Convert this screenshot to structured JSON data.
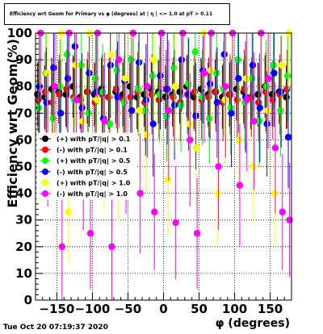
{
  "header": {
    "title": "Efficiency wrt Geom for Primary vs φ (degrees) at | η | <= 1.0 at pT > 0.11"
  },
  "footer": {
    "timestamp": "Tue Oct 20 07:19:37 2020"
  },
  "chart_data": {
    "type": "scatter",
    "xlabel": "φ (degrees)",
    "ylabel": "Efficiency wrt Geom(%)",
    "xlim": [
      -180,
      180
    ],
    "ylim": [
      0,
      100
    ],
    "xticks": [
      -150,
      -100,
      -50,
      0,
      50,
      100,
      150
    ],
    "xtick_labels": [
      "−150",
      "−100",
      "−50",
      "0",
      "50",
      "100",
      "150"
    ],
    "yticks": [
      0,
      10,
      20,
      30,
      40,
      50,
      60,
      70,
      80,
      90,
      100
    ],
    "grid": true,
    "legend_position": "left-middle",
    "series": [
      {
        "name": "(+) with pT/|q| > 0.1",
        "color": "#000000",
        "x": [
          -175,
          -165,
          -155,
          -145,
          -135,
          -125,
          -115,
          -105,
          -95,
          -85,
          -75,
          -65,
          -55,
          -45,
          -35,
          -25,
          -15,
          -5,
          5,
          15,
          25,
          35,
          45,
          55,
          65,
          75,
          85,
          95,
          105,
          115,
          125,
          135,
          145,
          155,
          165,
          175
        ],
        "y": [
          77,
          76,
          79,
          78,
          77,
          80,
          76,
          78,
          77,
          79,
          76,
          78,
          77,
          80,
          76,
          77,
          79,
          78,
          76,
          77,
          78,
          80,
          76,
          79,
          77,
          78,
          76,
          77,
          79,
          78,
          76,
          77,
          80,
          77,
          78,
          76
        ]
      },
      {
        "name": "(-) with pT/|q| > 0.1",
        "color": "#ff0000",
        "x": [
          -175,
          -165,
          -155,
          -145,
          -135,
          -125,
          -115,
          -105,
          -95,
          -85,
          -75,
          -65,
          -55,
          -45,
          -35,
          -25,
          -15,
          -5,
          5,
          15,
          25,
          35,
          45,
          55,
          65,
          75,
          85,
          95,
          105,
          115,
          125,
          135,
          145,
          155,
          165,
          175
        ],
        "y": [
          75,
          78,
          74,
          77,
          79,
          76,
          75,
          78,
          74,
          77,
          76,
          79,
          75,
          76,
          78,
          74,
          77,
          75,
          79,
          76,
          74,
          77,
          78,
          75,
          76,
          78,
          74,
          77,
          75,
          79,
          76,
          74,
          78,
          75,
          77,
          79
        ]
      },
      {
        "name": "(+) with pT/|q| > 0.5",
        "color": "#00ff00",
        "x": [
          -175,
          -165,
          -155,
          -145,
          -135,
          -125,
          -115,
          -105,
          -95,
          -85,
          -75,
          -65,
          -55,
          -45,
          -35,
          -25,
          -15,
          -5,
          5,
          15,
          25,
          35,
          45,
          55,
          65,
          75,
          85,
          95,
          105,
          115,
          125,
          135,
          145,
          155,
          165,
          175
        ],
        "y": [
          72,
          85,
          68,
          80,
          92,
          75,
          88,
          70,
          83,
          78,
          66,
          86,
          74,
          90,
          79,
          71,
          84,
          77,
          69,
          87,
          73,
          81,
          93,
          76,
          68,
          85,
          79,
          72,
          90,
          74,
          83,
          67,
          80,
          88,
          71,
          84
        ]
      },
      {
        "name": "(-) with pT/|q| > 0.5",
        "color": "#0000ff",
        "x": [
          -175,
          -165,
          -155,
          -145,
          -135,
          -125,
          -115,
          -105,
          -95,
          -85,
          -75,
          -65,
          -55,
          -45,
          -35,
          -25,
          -15,
          -5,
          5,
          15,
          25,
          35,
          45,
          55,
          65,
          75,
          85,
          95,
          105,
          115,
          125,
          135,
          145,
          155,
          165,
          175
        ],
        "y": [
          80,
          74,
          87,
          70,
          83,
          95,
          72,
          85,
          78,
          68,
          88,
          76,
          82,
          71,
          89,
          75,
          66,
          84,
          79,
          73,
          90,
          77,
          69,
          86,
          81,
          74,
          92,
          70,
          83,
          76,
          88,
          72,
          66,
          85,
          78,
          61
        ]
      },
      {
        "name": "(+) with pT/|q| > 1.0",
        "color": "#ffff00",
        "x": [
          -175,
          -165,
          -155,
          -145,
          -135,
          -125,
          -115,
          -105,
          -95,
          -85,
          -75,
          -65,
          -55,
          -45,
          -35,
          -25,
          -15,
          -5,
          5,
          15,
          25,
          35,
          45,
          55,
          65,
          75,
          85,
          95,
          105,
          115,
          125,
          135,
          145,
          155,
          165,
          175
        ],
        "y": [
          100,
          85,
          60,
          100,
          33,
          88,
          67,
          100,
          75,
          55,
          92,
          50,
          83,
          100,
          71,
          62,
          90,
          100,
          45,
          80,
          100,
          66,
          57,
          100,
          86,
          40,
          75,
          100,
          60,
          83,
          50,
          100,
          71,
          40,
          88,
          100
        ]
      },
      {
        "name": "(-) with pT/|q| > 1.0",
        "color": "#ff00ff",
        "x": [
          -175,
          -165,
          -155,
          -145,
          -135,
          -125,
          -115,
          -105,
          -95,
          -85,
          -75,
          -65,
          -55,
          -45,
          -35,
          -25,
          -15,
          -5,
          5,
          15,
          25,
          35,
          45,
          55,
          65,
          75,
          85,
          95,
          105,
          115,
          125,
          135,
          145,
          155,
          165,
          175
        ],
        "y": [
          100,
          60,
          80,
          20,
          100,
          75,
          50,
          25,
          100,
          67,
          20,
          90,
          57,
          100,
          40,
          80,
          33,
          100,
          71,
          29,
          100,
          60,
          25,
          85,
          100,
          50,
          80,
          100,
          43,
          75,
          67,
          100,
          83,
          57,
          33,
          30
        ]
      }
    ]
  }
}
